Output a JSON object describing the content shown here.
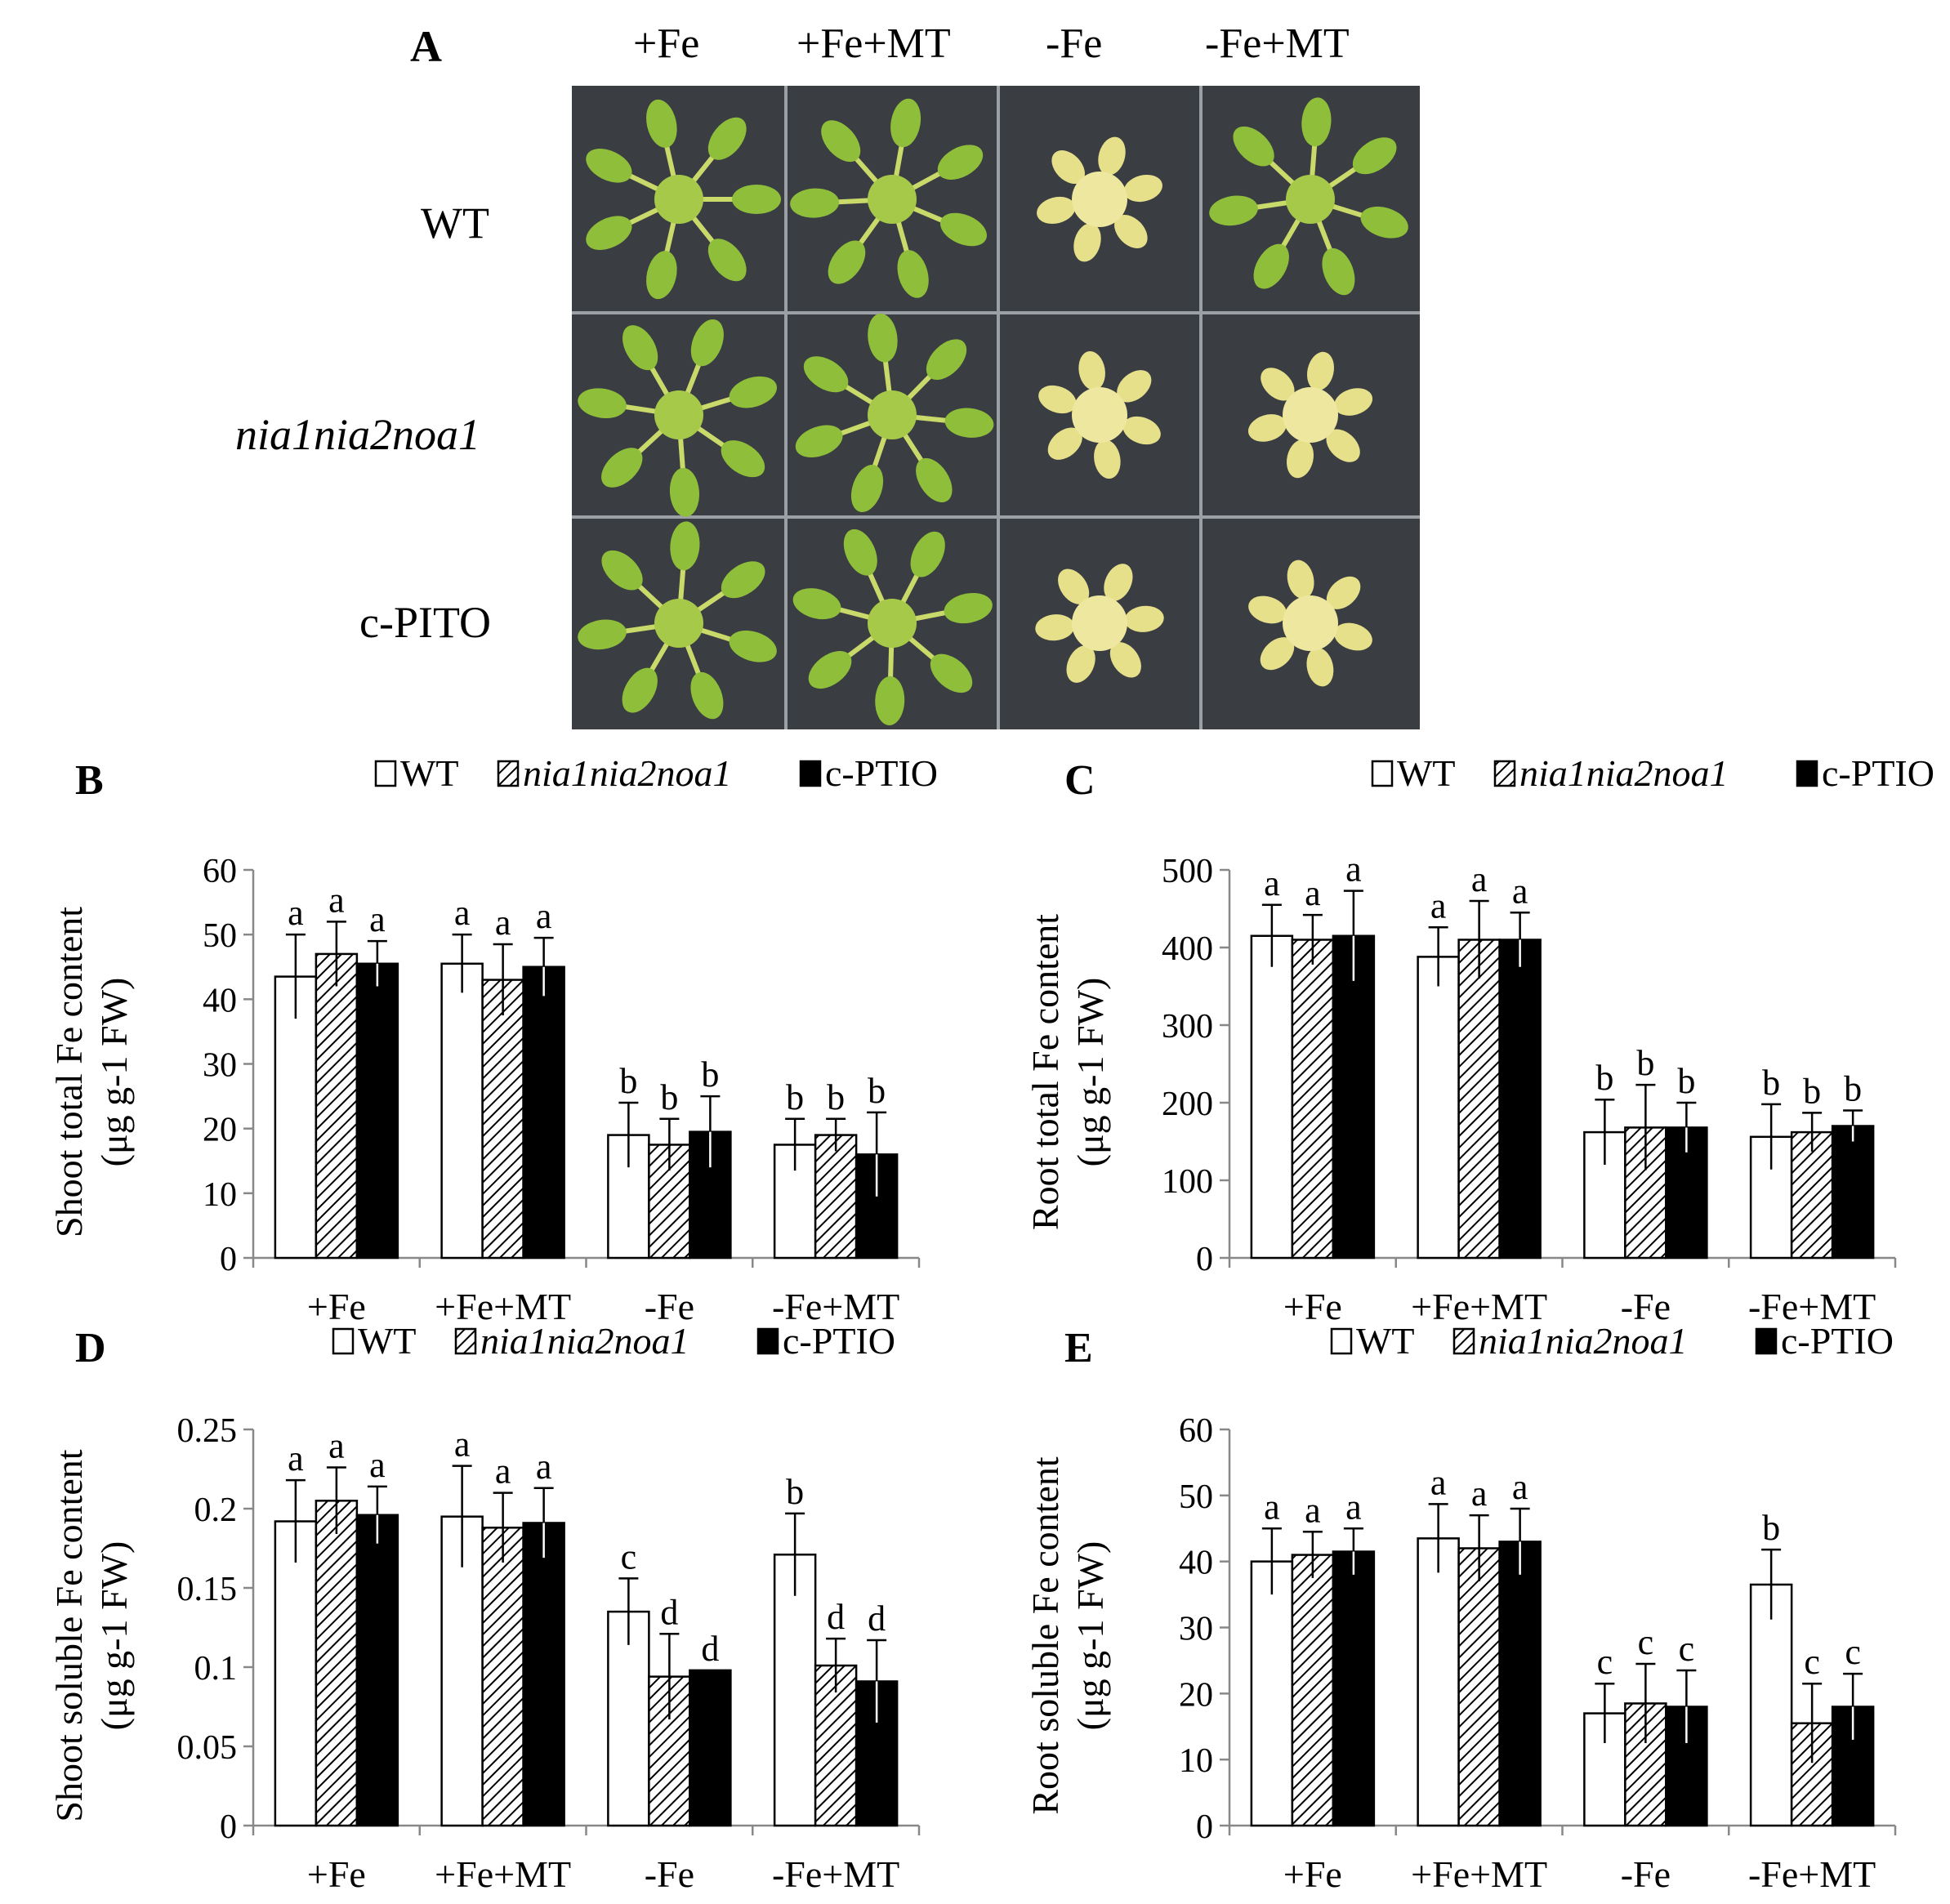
{
  "panel_a": {
    "letter": "A",
    "columns": [
      "+Fe",
      "+Fe+MT",
      "-Fe",
      "-Fe+MT"
    ],
    "rows": [
      "WT",
      "nia1nia2noa1",
      "c-PITO"
    ],
    "phenotype": [
      [
        "green",
        "green",
        "chlorotic",
        "green"
      ],
      [
        "green",
        "green",
        "chlorotic",
        "chlorotic"
      ],
      [
        "green",
        "green",
        "chlorotic",
        "chlorotic"
      ]
    ],
    "colors": {
      "plate": "#3a3d42",
      "green_leaf": "#8fbf3a",
      "chlorotic_leaf": "#e6e08a",
      "stem": "#c9d96a"
    }
  },
  "legend": {
    "labels": [
      "WT",
      "nia1nia2noa1",
      "c-PTIO"
    ]
  },
  "chart_data": [
    {
      "type": "bar",
      "letter": "B",
      "ylabel_lines": [
        "Shoot total Fe content",
        "(μg g-1 FW)"
      ],
      "categories": [
        "+Fe",
        "+Fe+MT",
        "-Fe",
        "-Fe+MT"
      ],
      "ylim": [
        0,
        60
      ],
      "ytick_values": [
        0,
        10,
        20,
        30,
        40,
        50,
        60
      ],
      "ytick_labels": [
        "0",
        "10",
        "20",
        "30",
        "40",
        "50",
        "60"
      ],
      "series": [
        {
          "name": "WT",
          "values": [
            43.5,
            45.5,
            19,
            17.5
          ],
          "errors": [
            6.5,
            4.5,
            5,
            4
          ],
          "letters": [
            "a",
            "a",
            "b",
            "b"
          ]
        },
        {
          "name": "nia1nia2noa1",
          "values": [
            47,
            43,
            17.5,
            19
          ],
          "errors": [
            5,
            5.5,
            4,
            2.5
          ],
          "letters": [
            "a",
            "a",
            "b",
            "b"
          ]
        },
        {
          "name": "c-PTIO",
          "values": [
            45.5,
            45,
            19.5,
            16
          ],
          "errors": [
            3.5,
            4.5,
            5.5,
            6.5
          ],
          "letters": [
            "a",
            "a",
            "b",
            "b"
          ]
        }
      ]
    },
    {
      "type": "bar",
      "letter": "C",
      "ylabel_lines": [
        "Root total Fe content",
        "(μg g-1 FW)"
      ],
      "categories": [
        "+Fe",
        "+Fe+MT",
        "-Fe",
        "-Fe+MT"
      ],
      "ylim": [
        0,
        500
      ],
      "ytick_values": [
        0,
        100,
        200,
        300,
        400,
        500
      ],
      "ytick_labels": [
        "0",
        "100",
        "200",
        "300",
        "400",
        "500"
      ],
      "series": [
        {
          "name": "WT",
          "values": [
            415,
            388,
            162,
            156
          ],
          "errors": [
            40,
            38,
            42,
            42
          ],
          "letters": [
            "a",
            "a",
            "b",
            "b"
          ]
        },
        {
          "name": "nia1nia2noa1",
          "values": [
            410,
            410,
            168,
            162
          ],
          "errors": [
            32,
            50,
            55,
            25
          ],
          "letters": [
            "a",
            "a",
            "b",
            "b"
          ]
        },
        {
          "name": "c-PTIO",
          "values": [
            415,
            410,
            168,
            170
          ],
          "errors": [
            58,
            35,
            32,
            20
          ],
          "letters": [
            "a",
            "a",
            "b",
            "b"
          ]
        }
      ]
    },
    {
      "type": "bar",
      "letter": "D",
      "ylabel_lines": [
        "Shoot soluble Fe content",
        "(μg g-1 FW)"
      ],
      "categories": [
        "+Fe",
        "+Fe+MT",
        "-Fe",
        "-Fe+MT"
      ],
      "ylim": [
        0,
        0.25
      ],
      "ytick_values": [
        0,
        0.05,
        0.1,
        0.15,
        0.2,
        0.25
      ],
      "ytick_labels": [
        "0",
        "0.05",
        "0.1",
        "0.15",
        "0.2",
        "0.25"
      ],
      "series": [
        {
          "name": "WT",
          "values": [
            0.192,
            0.195,
            0.135,
            0.171
          ],
          "errors": [
            0.026,
            0.032,
            0.021,
            0.026
          ],
          "letters": [
            "a",
            "a",
            "c",
            "b"
          ]
        },
        {
          "name": "nia1nia2noa1",
          "values": [
            0.205,
            0.188,
            0.094,
            0.101
          ],
          "errors": [
            0.021,
            0.022,
            0.027,
            0.017
          ],
          "letters": [
            "a",
            "a",
            "d",
            "d"
          ]
        },
        {
          "name": "c-PTIO",
          "values": [
            0.196,
            0.191,
            0.098,
            0.091
          ],
          "errors": [
            0.018,
            0.022,
            0.0,
            0.026
          ],
          "letters": [
            "a",
            "a",
            "d",
            "d"
          ]
        }
      ]
    },
    {
      "type": "bar",
      "letter": "E",
      "ylabel_lines": [
        "Root soluble Fe content",
        "(μg g-1 FW)"
      ],
      "categories": [
        "+Fe",
        "+Fe+MT",
        "-Fe",
        "-Fe+MT"
      ],
      "ylim": [
        0,
        60
      ],
      "ytick_values": [
        0,
        10,
        20,
        30,
        40,
        50,
        60
      ],
      "ytick_labels": [
        "0",
        "10",
        "20",
        "30",
        "40",
        "50",
        "60"
      ],
      "series": [
        {
          "name": "WT",
          "values": [
            40,
            43.5,
            17,
            36.5
          ],
          "errors": [
            5,
            5.2,
            4.5,
            5.3
          ],
          "letters": [
            "a",
            "a",
            "c",
            "b"
          ]
        },
        {
          "name": "nia1nia2noa1",
          "values": [
            41,
            42,
            18.5,
            15.5
          ],
          "errors": [
            3.5,
            5,
            6,
            6
          ],
          "letters": [
            "a",
            "a",
            "c",
            "c"
          ]
        },
        {
          "name": "c-PTIO",
          "values": [
            41.5,
            43,
            18,
            18
          ],
          "errors": [
            3.5,
            5,
            5.5,
            5
          ],
          "letters": [
            "a",
            "a",
            "c",
            "c"
          ]
        }
      ]
    }
  ]
}
